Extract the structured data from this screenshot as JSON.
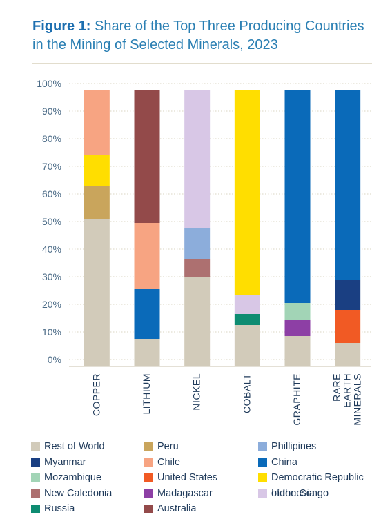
{
  "title": {
    "prefix": "Figure 1:",
    "line1": " Share of the Top Three Producing Countries",
    "line2": "in the Mining of Selected Minerals, 2023"
  },
  "chart_data": {
    "type": "bar",
    "stacked": true,
    "y_unit": "percent",
    "ylim": [
      0,
      100
    ],
    "yticks": [
      "0%",
      "10%",
      "20%",
      "30%",
      "40%",
      "50%",
      "60%",
      "70%",
      "80%",
      "90%",
      "100%"
    ],
    "grid": true,
    "legend_position": "bottom",
    "categories": [
      {
        "name": "copper",
        "label_lines": [
          "COPPER"
        ]
      },
      {
        "name": "lithium",
        "label_lines": [
          "LITHIUM"
        ]
      },
      {
        "name": "nickel",
        "label_lines": [
          "NICKEL"
        ]
      },
      {
        "name": "cobalt",
        "label_lines": [
          "COBALT"
        ]
      },
      {
        "name": "graphite",
        "label_lines": [
          "GRAPHITE"
        ]
      },
      {
        "name": "rare-earth-minerals",
        "label_lines": [
          "RARE",
          "EARTH",
          "MINERALS"
        ]
      }
    ],
    "segments": [
      [
        {
          "series": "Rest of World",
          "value": 53.5
        },
        {
          "series": "Peru",
          "value": 12
        },
        {
          "series": "Democratic Republic of the Congo",
          "value": 11
        },
        {
          "series": "Chile",
          "value": 23.5
        }
      ],
      [
        {
          "series": "Rest of World",
          "value": 10
        },
        {
          "series": "China",
          "value": 18
        },
        {
          "series": "Chile",
          "value": 24
        },
        {
          "series": "Australia",
          "value": 48
        }
      ],
      [
        {
          "series": "Rest of World",
          "value": 32.5
        },
        {
          "series": "New Caledonia",
          "value": 6.5
        },
        {
          "series": "Phillipines",
          "value": 11
        },
        {
          "series": "Indonesia",
          "value": 50
        }
      ],
      [
        {
          "series": "Rest of World",
          "value": 15
        },
        {
          "series": "Russia",
          "value": 4
        },
        {
          "series": "Indonesia",
          "value": 7
        },
        {
          "series": "Democratic Republic of the Congo",
          "value": 74
        }
      ],
      [
        {
          "series": "Rest of World",
          "value": 11
        },
        {
          "series": "Madagascar",
          "value": 6
        },
        {
          "series": "Mozambique",
          "value": 6
        },
        {
          "series": "China",
          "value": 77
        }
      ],
      [
        {
          "series": "Rest of World",
          "value": 8.5
        },
        {
          "series": "United States",
          "value": 12
        },
        {
          "series": "Myanmar",
          "value": 11
        },
        {
          "series": "China",
          "value": 68.5
        }
      ]
    ],
    "legend": [
      {
        "name": "Rest of World",
        "label_lines": [
          "Rest of World"
        ],
        "color": "#d2cbba"
      },
      {
        "name": "Peru",
        "label_lines": [
          "Peru"
        ],
        "color": "#c9a55c"
      },
      {
        "name": "Phillipines",
        "label_lines": [
          "Phillipines"
        ],
        "color": "#8caddb"
      },
      {
        "name": "Myanmar",
        "label_lines": [
          "Myanmar"
        ],
        "color": "#1a3f82"
      },
      {
        "name": "Chile",
        "label_lines": [
          "Chile"
        ],
        "color": "#f7a482"
      },
      {
        "name": "China",
        "label_lines": [
          "China"
        ],
        "color": "#0a6ab9"
      },
      {
        "name": "Mozambique",
        "label_lines": [
          "Mozambique"
        ],
        "color": "#a2d4b6"
      },
      {
        "name": "United States",
        "label_lines": [
          "United States"
        ],
        "color": "#f15a24"
      },
      {
        "name": "Democratic Republic of the Congo",
        "label_lines": [
          "Democratic Republic",
          "of the Congo"
        ],
        "color": "#ffde00"
      },
      {
        "name": "New Caledonia",
        "label_lines": [
          "New Caledonia"
        ],
        "color": "#ad7070"
      },
      {
        "name": "Madagascar",
        "label_lines": [
          "Madagascar"
        ],
        "color": "#8d3fa5"
      },
      {
        "name": "Indonesia",
        "label_lines": [
          "Indonesia"
        ],
        "color": "#d8c7e6"
      },
      {
        "name": "Russia",
        "label_lines": [
          "Russia"
        ],
        "color": "#0e8c72"
      },
      {
        "name": "Australia",
        "label_lines": [
          "Australia"
        ],
        "color": "#934a4a"
      }
    ]
  }
}
